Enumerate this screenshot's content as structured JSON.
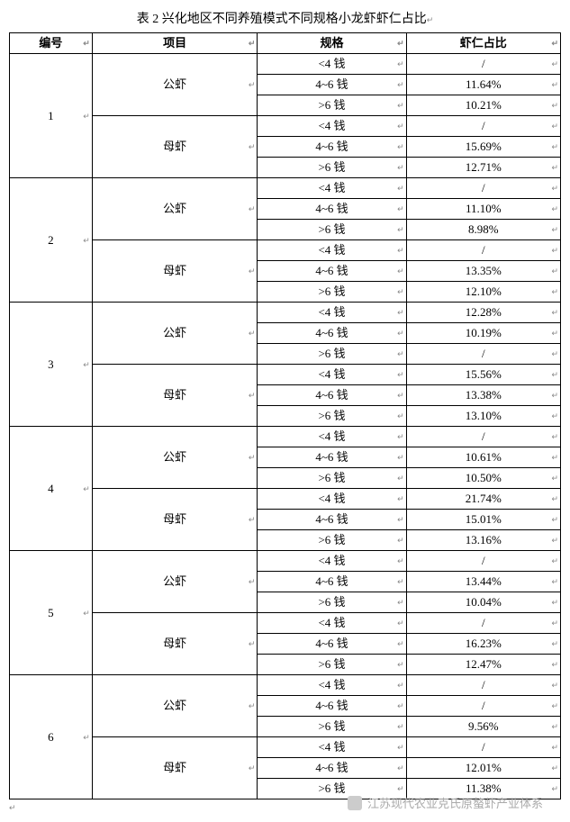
{
  "title": "表 2 兴化地区不同养殖模式不同规格小龙虾虾仁占比",
  "marker": "↵",
  "headers": {
    "id": "编号",
    "item": "项目",
    "spec": "规格",
    "ratio": "虾仁占比"
  },
  "sections": [
    {
      "id": "1",
      "groups": [
        {
          "item": "公虾",
          "rows": [
            {
              "spec": "<4 钱",
              "ratio": "/"
            },
            {
              "spec": "4~6 钱",
              "ratio": "11.64%"
            },
            {
              "spec": ">6 钱",
              "ratio": "10.21%"
            }
          ]
        },
        {
          "item": "母虾",
          "rows": [
            {
              "spec": "<4 钱",
              "ratio": "/"
            },
            {
              "spec": "4~6 钱",
              "ratio": "15.69%"
            },
            {
              "spec": ">6 钱",
              "ratio": "12.71%"
            }
          ]
        }
      ]
    },
    {
      "id": "2",
      "groups": [
        {
          "item": "公虾",
          "rows": [
            {
              "spec": "<4 钱",
              "ratio": "/"
            },
            {
              "spec": "4~6 钱",
              "ratio": "11.10%"
            },
            {
              "spec": ">6 钱",
              "ratio": "8.98%"
            }
          ]
        },
        {
          "item": "母虾",
          "rows": [
            {
              "spec": "<4 钱",
              "ratio": "/"
            },
            {
              "spec": "4~6 钱",
              "ratio": "13.35%"
            },
            {
              "spec": ">6 钱",
              "ratio": "12.10%"
            }
          ]
        }
      ]
    },
    {
      "id": "3",
      "groups": [
        {
          "item": "公虾",
          "rows": [
            {
              "spec": "<4 钱",
              "ratio": "12.28%"
            },
            {
              "spec": "4~6 钱",
              "ratio": "10.19%"
            },
            {
              "spec": ">6 钱",
              "ratio": "/"
            }
          ]
        },
        {
          "item": "母虾",
          "rows": [
            {
              "spec": "<4 钱",
              "ratio": "15.56%"
            },
            {
              "spec": "4~6 钱",
              "ratio": "13.38%"
            },
            {
              "spec": ">6 钱",
              "ratio": "13.10%"
            }
          ]
        }
      ]
    },
    {
      "id": "4",
      "groups": [
        {
          "item": "公虾",
          "rows": [
            {
              "spec": "<4 钱",
              "ratio": "/"
            },
            {
              "spec": "4~6 钱",
              "ratio": "10.61%"
            },
            {
              "spec": ">6 钱",
              "ratio": "10.50%"
            }
          ]
        },
        {
          "item": "母虾",
          "rows": [
            {
              "spec": "<4 钱",
              "ratio": "21.74%"
            },
            {
              "spec": "4~6 钱",
              "ratio": "15.01%"
            },
            {
              "spec": ">6 钱",
              "ratio": "13.16%"
            }
          ]
        }
      ]
    },
    {
      "id": "5",
      "groups": [
        {
          "item": "公虾",
          "rows": [
            {
              "spec": "<4 钱",
              "ratio": "/"
            },
            {
              "spec": "4~6 钱",
              "ratio": "13.44%"
            },
            {
              "spec": ">6 钱",
              "ratio": "10.04%"
            }
          ]
        },
        {
          "item": "母虾",
          "rows": [
            {
              "spec": "<4 钱",
              "ratio": "/"
            },
            {
              "spec": "4~6 钱",
              "ratio": "16.23%"
            },
            {
              "spec": ">6 钱",
              "ratio": "12.47%"
            }
          ]
        }
      ]
    },
    {
      "id": "6",
      "groups": [
        {
          "item": "公虾",
          "rows": [
            {
              "spec": "<4 钱",
              "ratio": "/"
            },
            {
              "spec": "4~6 钱",
              "ratio": "/"
            },
            {
              "spec": ">6 钱",
              "ratio": "9.56%"
            }
          ]
        },
        {
          "item": "母虾",
          "rows": [
            {
              "spec": "<4 钱",
              "ratio": "/"
            },
            {
              "spec": "4~6 钱",
              "ratio": "12.01%"
            },
            {
              "spec": ">6 钱",
              "ratio": "11.38%"
            }
          ]
        }
      ]
    }
  ],
  "footer": "江苏现代农业克氏原螯虾产业体系"
}
